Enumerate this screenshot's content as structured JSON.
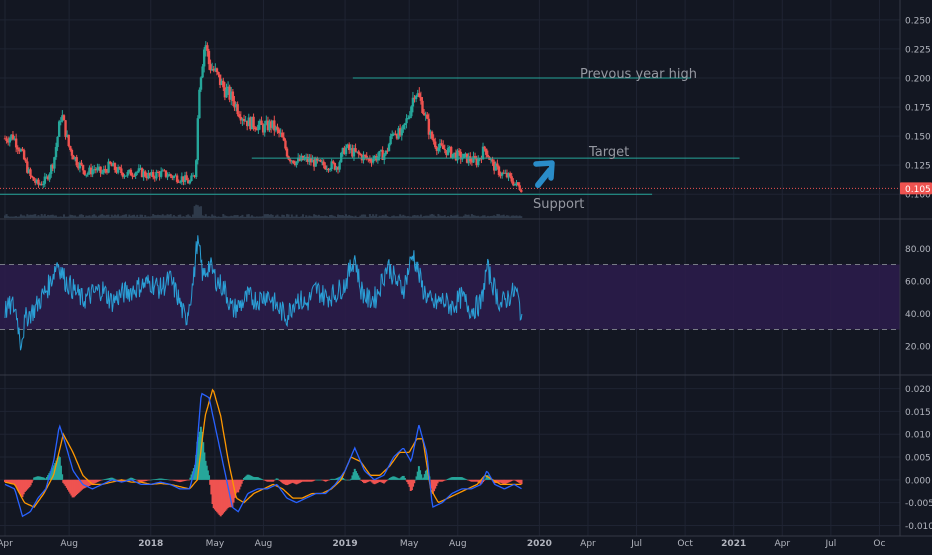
{
  "colors": {
    "background": "#131722",
    "grid": "#1f2433",
    "axis_text": "#b2b5be",
    "candle_up": "#26a69a",
    "candle_down": "#ef5350",
    "annotation_line": "#26a69a",
    "price_line": "#ef5350",
    "price_badge": "#ef5350",
    "rsi_line": "#2a9fd6",
    "rsi_band": "#2b1c4a",
    "macd_line": "#2962ff",
    "signal_line": "#ff9800",
    "hist_up": "#26a69a",
    "hist_down": "#ef5350",
    "arrow": "#2a8cc8",
    "annotation_text": "#9598a1"
  },
  "x_axis": {
    "ticks": [
      "Apr",
      "Aug",
      "2018",
      "May",
      "Aug",
      "2019",
      "May",
      "Aug",
      "2020",
      "Apr",
      "Jul",
      "Oct",
      "2021",
      "Apr",
      "Jul",
      "Oc"
    ]
  },
  "annotations": {
    "prev_high": "Prevous year high",
    "target": "Target",
    "support": "Support",
    "arrow_icon": "arrow-up-right-icon"
  },
  "chart_data": [
    {
      "type": "candlestick",
      "panel": "price",
      "y_ticks": [
        "0.250",
        "0.225",
        "0.200",
        "0.175",
        "0.150",
        "0.125",
        "0.100"
      ],
      "ylim": [
        0.095,
        0.255
      ],
      "last_price_label": "0.105",
      "last_price": 0.105,
      "levels": {
        "previous_year_high": 0.2,
        "target": 0.131,
        "support": 0.1
      },
      "close_series": [
        [
          2017.25,
          0.148
        ],
        [
          2017.29,
          0.15
        ],
        [
          2017.33,
          0.138
        ],
        [
          2017.38,
          0.115
        ],
        [
          2017.42,
          0.108
        ],
        [
          2017.46,
          0.112
        ],
        [
          2017.5,
          0.128
        ],
        [
          2017.54,
          0.17
        ],
        [
          2017.58,
          0.14
        ],
        [
          2017.62,
          0.128
        ],
        [
          2017.67,
          0.118
        ],
        [
          2017.71,
          0.122
        ],
        [
          2017.75,
          0.118
        ],
        [
          2017.79,
          0.125
        ],
        [
          2017.83,
          0.12
        ],
        [
          2017.88,
          0.117
        ],
        [
          2017.92,
          0.12
        ],
        [
          2017.96,
          0.118
        ],
        [
          2018.0,
          0.115
        ],
        [
          2018.04,
          0.118
        ],
        [
          2018.08,
          0.117
        ],
        [
          2018.12,
          0.115
        ],
        [
          2018.16,
          0.114
        ],
        [
          2018.2,
          0.11
        ],
        [
          2018.23,
          0.118
        ],
        [
          2018.25,
          0.195
        ],
        [
          2018.28,
          0.232
        ],
        [
          2018.3,
          0.212
        ],
        [
          2018.33,
          0.205
        ],
        [
          2018.38,
          0.19
        ],
        [
          2018.42,
          0.182
        ],
        [
          2018.46,
          0.17
        ],
        [
          2018.5,
          0.162
        ],
        [
          2018.54,
          0.16
        ],
        [
          2018.58,
          0.157
        ],
        [
          2018.62,
          0.16
        ],
        [
          2018.67,
          0.15
        ],
        [
          2018.71,
          0.132
        ],
        [
          2018.75,
          0.128
        ],
        [
          2018.79,
          0.13
        ],
        [
          2018.83,
          0.128
        ],
        [
          2018.88,
          0.125
        ],
        [
          2018.92,
          0.125
        ],
        [
          2018.96,
          0.124
        ],
        [
          2019.0,
          0.14
        ],
        [
          2019.04,
          0.136
        ],
        [
          2019.08,
          0.133
        ],
        [
          2019.12,
          0.13
        ],
        [
          2019.16,
          0.132
        ],
        [
          2019.21,
          0.135
        ],
        [
          2019.25,
          0.155
        ],
        [
          2019.29,
          0.15
        ],
        [
          2019.33,
          0.17
        ],
        [
          2019.36,
          0.19
        ],
        [
          2019.4,
          0.175
        ],
        [
          2019.44,
          0.15
        ],
        [
          2019.48,
          0.14
        ],
        [
          2019.52,
          0.138
        ],
        [
          2019.56,
          0.134
        ],
        [
          2019.6,
          0.132
        ],
        [
          2019.64,
          0.13
        ],
        [
          2019.68,
          0.128
        ],
        [
          2019.72,
          0.14
        ],
        [
          2019.76,
          0.125
        ],
        [
          2019.8,
          0.118
        ],
        [
          2019.84,
          0.115
        ],
        [
          2019.88,
          0.108
        ],
        [
          2019.91,
          0.105
        ]
      ]
    },
    {
      "type": "line",
      "panel": "rsi",
      "y_ticks": [
        "80.00",
        "60.00",
        "40.00",
        "20.00"
      ],
      "ylim": [
        10,
        90
      ],
      "band": [
        30,
        70
      ],
      "series": [
        [
          2017.25,
          42
        ],
        [
          2017.29,
          45
        ],
        [
          2017.31,
          40
        ],
        [
          2017.33,
          22
        ],
        [
          2017.36,
          38
        ],
        [
          2017.4,
          42
        ],
        [
          2017.44,
          50
        ],
        [
          2017.48,
          58
        ],
        [
          2017.52,
          72
        ],
        [
          2017.56,
          60
        ],
        [
          2017.6,
          55
        ],
        [
          2017.65,
          48
        ],
        [
          2017.7,
          52
        ],
        [
          2017.75,
          55
        ],
        [
          2017.8,
          47
        ],
        [
          2017.85,
          52
        ],
        [
          2017.9,
          54
        ],
        [
          2017.95,
          57
        ],
        [
          2018.0,
          59
        ],
        [
          2018.05,
          55
        ],
        [
          2018.1,
          61
        ],
        [
          2018.14,
          50
        ],
        [
          2018.18,
          35
        ],
        [
          2018.22,
          60
        ],
        [
          2018.24,
          86
        ],
        [
          2018.27,
          62
        ],
        [
          2018.3,
          70
        ],
        [
          2018.34,
          60
        ],
        [
          2018.38,
          55
        ],
        [
          2018.42,
          42
        ],
        [
          2018.46,
          45
        ],
        [
          2018.5,
          50
        ],
        [
          2018.55,
          48
        ],
        [
          2018.6,
          52
        ],
        [
          2018.65,
          44
        ],
        [
          2018.7,
          38
        ],
        [
          2018.75,
          50
        ],
        [
          2018.8,
          45
        ],
        [
          2018.85,
          55
        ],
        [
          2018.9,
          50
        ],
        [
          2018.95,
          52
        ],
        [
          2019.0,
          58
        ],
        [
          2019.05,
          75
        ],
        [
          2019.08,
          55
        ],
        [
          2019.12,
          48
        ],
        [
          2019.16,
          50
        ],
        [
          2019.22,
          70
        ],
        [
          2019.26,
          60
        ],
        [
          2019.3,
          55
        ],
        [
          2019.35,
          77
        ],
        [
          2019.4,
          55
        ],
        [
          2019.45,
          45
        ],
        [
          2019.5,
          48
        ],
        [
          2019.55,
          44
        ],
        [
          2019.6,
          50
        ],
        [
          2019.65,
          42
        ],
        [
          2019.7,
          46
        ],
        [
          2019.73,
          68
        ],
        [
          2019.77,
          55
        ],
        [
          2019.8,
          45
        ],
        [
          2019.84,
          50
        ],
        [
          2019.88,
          54
        ],
        [
          2019.91,
          38
        ]
      ]
    },
    {
      "type": "line",
      "panel": "macd",
      "y_ticks": [
        "0.020",
        "0.015",
        "0.010",
        "0.005",
        "0.000",
        "-0.005",
        "-0.010"
      ],
      "ylim": [
        -0.011,
        0.021
      ],
      "series": [
        {
          "key": "macd",
          "values": [
            [
              2017.25,
              -0.001
            ],
            [
              2017.3,
              -0.002
            ],
            [
              2017.34,
              -0.008
            ],
            [
              2017.38,
              -0.007
            ],
            [
              2017.42,
              -0.004
            ],
            [
              2017.46,
              -0.002
            ],
            [
              2017.5,
              0.004
            ],
            [
              2017.53,
              0.012
            ],
            [
              2017.56,
              0.008
            ],
            [
              2017.6,
              0.002
            ],
            [
              2017.65,
              -0.001
            ],
            [
              2017.7,
              -0.002
            ],
            [
              2017.75,
              -0.001
            ],
            [
              2017.8,
              0.0
            ],
            [
              2017.85,
              -0.0005
            ],
            [
              2017.9,
              0.0
            ],
            [
              2017.95,
              -0.001
            ],
            [
              2018.0,
              -0.001
            ],
            [
              2018.05,
              -0.0005
            ],
            [
              2018.1,
              -0.001
            ],
            [
              2018.15,
              -0.002
            ],
            [
              2018.2,
              -0.002
            ],
            [
              2018.23,
              0.003
            ],
            [
              2018.26,
              0.019
            ],
            [
              2018.3,
              0.018
            ],
            [
              2018.34,
              0.01
            ],
            [
              2018.38,
              0.002
            ],
            [
              2018.42,
              -0.006
            ],
            [
              2018.45,
              -0.007
            ],
            [
              2018.5,
              -0.003
            ],
            [
              2018.55,
              -0.002
            ],
            [
              2018.6,
              -0.002
            ],
            [
              2018.65,
              -0.001
            ],
            [
              2018.7,
              -0.004
            ],
            [
              2018.75,
              -0.005
            ],
            [
              2018.8,
              -0.004
            ],
            [
              2018.85,
              -0.003
            ],
            [
              2018.9,
              -0.003
            ],
            [
              2018.95,
              -0.001
            ],
            [
              2019.0,
              0.002
            ],
            [
              2019.05,
              0.007
            ],
            [
              2019.1,
              0.002
            ],
            [
              2019.15,
              0.0
            ],
            [
              2019.2,
              0.001
            ],
            [
              2019.25,
              0.005
            ],
            [
              2019.3,
              0.007
            ],
            [
              2019.34,
              0.004
            ],
            [
              2019.38,
              0.012
            ],
            [
              2019.42,
              0.006
            ],
            [
              2019.45,
              -0.006
            ],
            [
              2019.5,
              -0.005
            ],
            [
              2019.55,
              -0.003
            ],
            [
              2019.6,
              -0.002
            ],
            [
              2019.65,
              -0.002
            ],
            [
              2019.7,
              -0.001
            ],
            [
              2019.73,
              0.002
            ],
            [
              2019.77,
              -0.001
            ],
            [
              2019.82,
              -0.002
            ],
            [
              2019.87,
              -0.001
            ],
            [
              2019.91,
              -0.002
            ]
          ]
        },
        {
          "key": "signal",
          "values": [
            [
              2017.25,
              -0.0005
            ],
            [
              2017.3,
              -0.001
            ],
            [
              2017.35,
              -0.005
            ],
            [
              2017.4,
              -0.006
            ],
            [
              2017.45,
              -0.003
            ],
            [
              2017.5,
              0.001
            ],
            [
              2017.55,
              0.01
            ],
            [
              2017.6,
              0.006
            ],
            [
              2017.65,
              0.001
            ],
            [
              2017.7,
              -0.001
            ],
            [
              2017.75,
              -0.001
            ],
            [
              2017.8,
              -0.0005
            ],
            [
              2017.85,
              0.0
            ],
            [
              2017.9,
              -0.0005
            ],
            [
              2017.95,
              -0.0005
            ],
            [
              2018.0,
              -0.001
            ],
            [
              2018.05,
              -0.0008
            ],
            [
              2018.1,
              -0.001
            ],
            [
              2018.15,
              -0.0015
            ],
            [
              2018.2,
              -0.002
            ],
            [
              2018.24,
              0.0
            ],
            [
              2018.28,
              0.014
            ],
            [
              2018.32,
              0.02
            ],
            [
              2018.36,
              0.014
            ],
            [
              2018.4,
              0.004
            ],
            [
              2018.44,
              -0.004
            ],
            [
              2018.48,
              -0.005
            ],
            [
              2018.53,
              -0.003
            ],
            [
              2018.58,
              -0.002
            ],
            [
              2018.63,
              -0.001
            ],
            [
              2018.68,
              -0.002
            ],
            [
              2018.73,
              -0.004
            ],
            [
              2018.78,
              -0.004
            ],
            [
              2018.83,
              -0.003
            ],
            [
              2018.88,
              -0.003
            ],
            [
              2018.93,
              -0.002
            ],
            [
              2018.98,
              0.0
            ],
            [
              2019.03,
              0.005
            ],
            [
              2019.08,
              0.004
            ],
            [
              2019.13,
              0.001
            ],
            [
              2019.18,
              0.001
            ],
            [
              2019.23,
              0.003
            ],
            [
              2019.28,
              0.006
            ],
            [
              2019.33,
              0.006
            ],
            [
              2019.37,
              0.009
            ],
            [
              2019.4,
              0.009
            ],
            [
              2019.44,
              -0.002
            ],
            [
              2019.48,
              -0.005
            ],
            [
              2019.53,
              -0.004
            ],
            [
              2019.58,
              -0.003
            ],
            [
              2019.63,
              -0.002
            ],
            [
              2019.68,
              -0.001
            ],
            [
              2019.72,
              0.001
            ],
            [
              2019.76,
              0.0
            ],
            [
              2019.8,
              -0.001
            ],
            [
              2019.85,
              -0.001
            ],
            [
              2019.91,
              -0.001
            ]
          ]
        }
      ]
    }
  ]
}
